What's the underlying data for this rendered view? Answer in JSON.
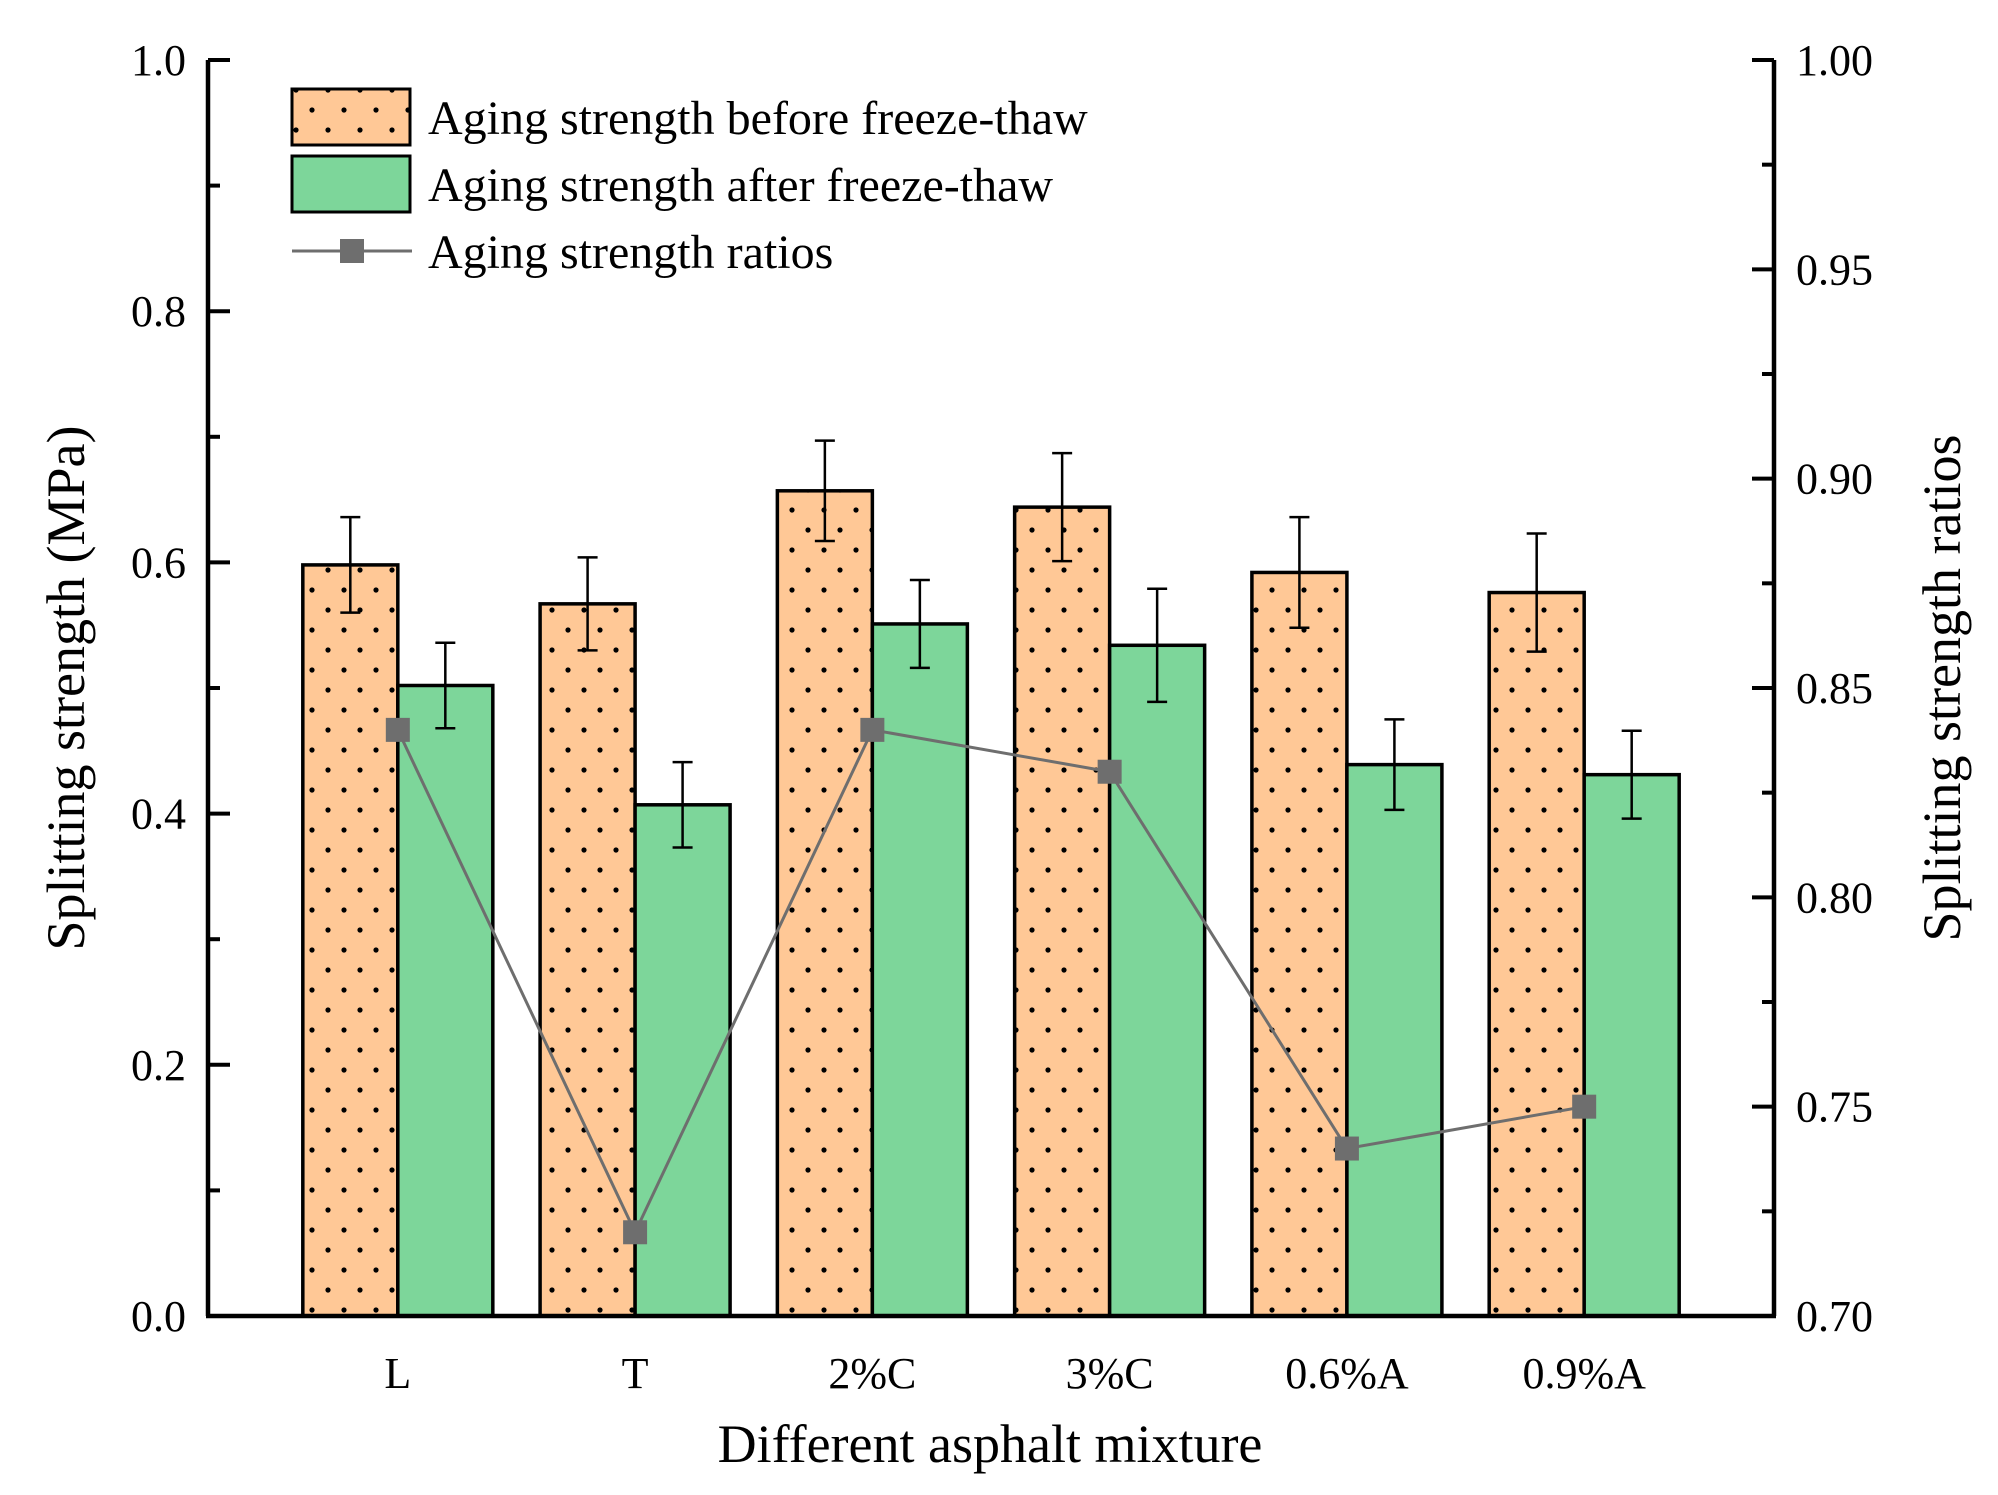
{
  "chart_data": {
    "type": "bar",
    "categories": [
      "L",
      "T",
      "2%C",
      "3%C",
      "0.6%A",
      "0.9%A"
    ],
    "xlabel": "Different asphalt mixture",
    "ylabel": "Splitting strength (MPa)",
    "y2label": "Splitting strength ratios",
    "ylim": [
      0.0,
      1.0
    ],
    "y2lim": [
      0.7,
      1.0
    ],
    "yticks": [
      "0.0",
      "0.2",
      "0.4",
      "0.6",
      "0.8",
      "1.0"
    ],
    "y2ticks": [
      "0.70",
      "0.75",
      "0.80",
      "0.85",
      "0.90",
      "0.95",
      "1.00"
    ],
    "legend_position": "top-left",
    "series": [
      {
        "name": "Aging strength before freeze-thaw",
        "kind": "bar",
        "axis": "left",
        "color": "#FFC896",
        "pattern": "dots",
        "values": [
          0.598,
          0.567,
          0.657,
          0.644,
          0.592,
          0.576
        ],
        "errors": [
          0.038,
          0.037,
          0.04,
          0.043,
          0.044,
          0.047
        ]
      },
      {
        "name": "Aging strength after freeze-thaw",
        "kind": "bar",
        "axis": "left",
        "color": "#7DD69A",
        "values": [
          0.502,
          0.407,
          0.551,
          0.534,
          0.439,
          0.431
        ],
        "errors": [
          0.034,
          0.034,
          0.035,
          0.045,
          0.036,
          0.035
        ]
      },
      {
        "name": "Aging strength ratios",
        "kind": "line",
        "axis": "right",
        "color": "#6E6E6E",
        "marker": "square",
        "values": [
          0.84,
          0.72,
          0.84,
          0.83,
          0.74,
          0.75
        ]
      }
    ]
  }
}
